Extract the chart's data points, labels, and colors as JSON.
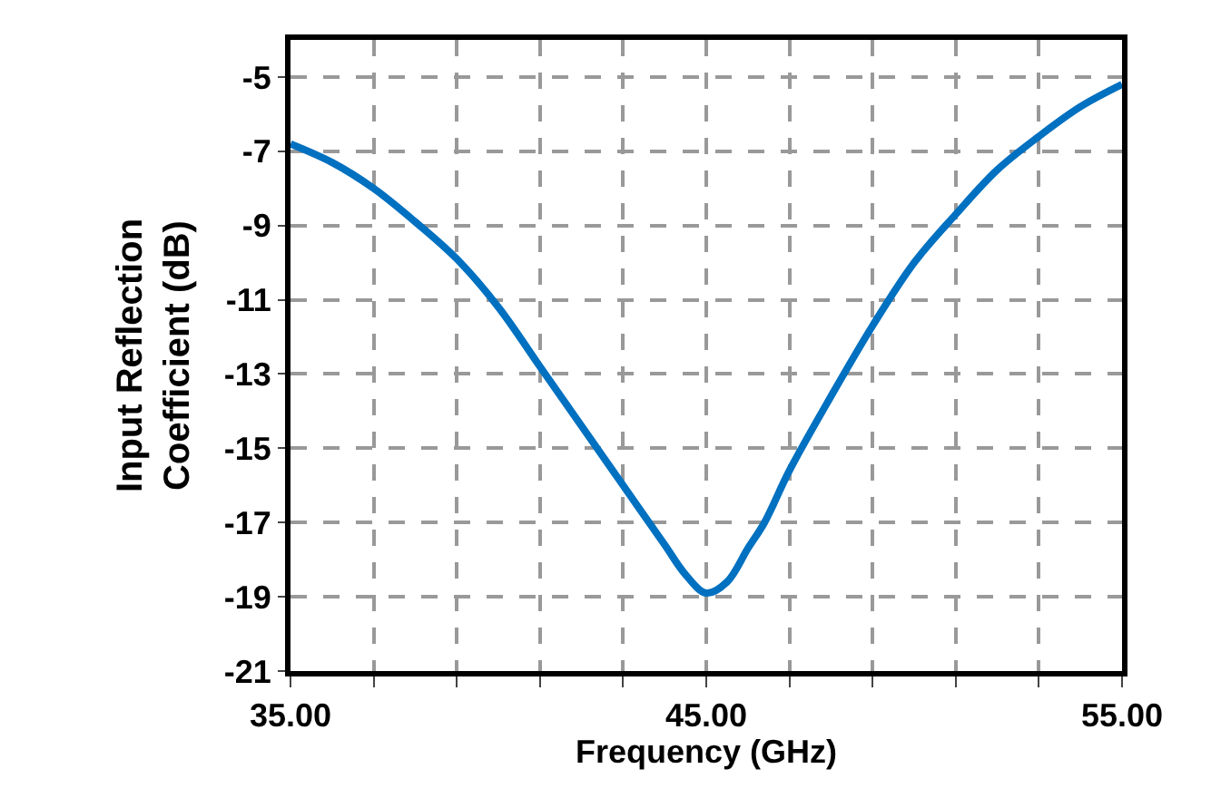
{
  "chart_data": {
    "type": "line",
    "xlabel": "Frequency (GHz)",
    "ylabel": "Input Reflection\nCoefficient (dB)",
    "x": [
      35,
      36,
      37,
      38,
      39,
      40,
      41,
      42,
      43,
      44,
      44.5,
      45,
      45.5,
      46,
      46.4,
      47,
      48,
      49,
      50,
      51,
      52,
      53,
      54,
      55
    ],
    "series": [
      {
        "color": "#0070c0",
        "values": [
          -6.8,
          -7.3,
          -8.0,
          -8.9,
          -9.9,
          -11.2,
          -12.8,
          -14.4,
          -16.0,
          -17.6,
          -18.4,
          -18.9,
          -18.6,
          -17.7,
          -17.0,
          -15.6,
          -13.6,
          -11.7,
          -10.0,
          -8.7,
          -7.5,
          -6.6,
          -5.8,
          -5.2
        ]
      }
    ],
    "xlim": [
      35,
      55
    ],
    "xticks": [
      {
        "value": 35,
        "label": "35.00"
      },
      {
        "value": 37,
        "label": null
      },
      {
        "value": 39,
        "label": null
      },
      {
        "value": 41,
        "label": null
      },
      {
        "value": 43,
        "label": null
      },
      {
        "value": 45,
        "label": "45.00"
      },
      {
        "value": 47,
        "label": null
      },
      {
        "value": 49,
        "label": null
      },
      {
        "value": 51,
        "label": null
      },
      {
        "value": 53,
        "label": null
      },
      {
        "value": 55,
        "label": "55.00"
      }
    ],
    "ylim": [
      -21,
      -4
    ],
    "yticks": [
      -21,
      -19,
      -17,
      -15,
      -13,
      -11,
      -9,
      -7,
      -5
    ],
    "grid": true,
    "marker": "none",
    "line_style": "solid"
  }
}
